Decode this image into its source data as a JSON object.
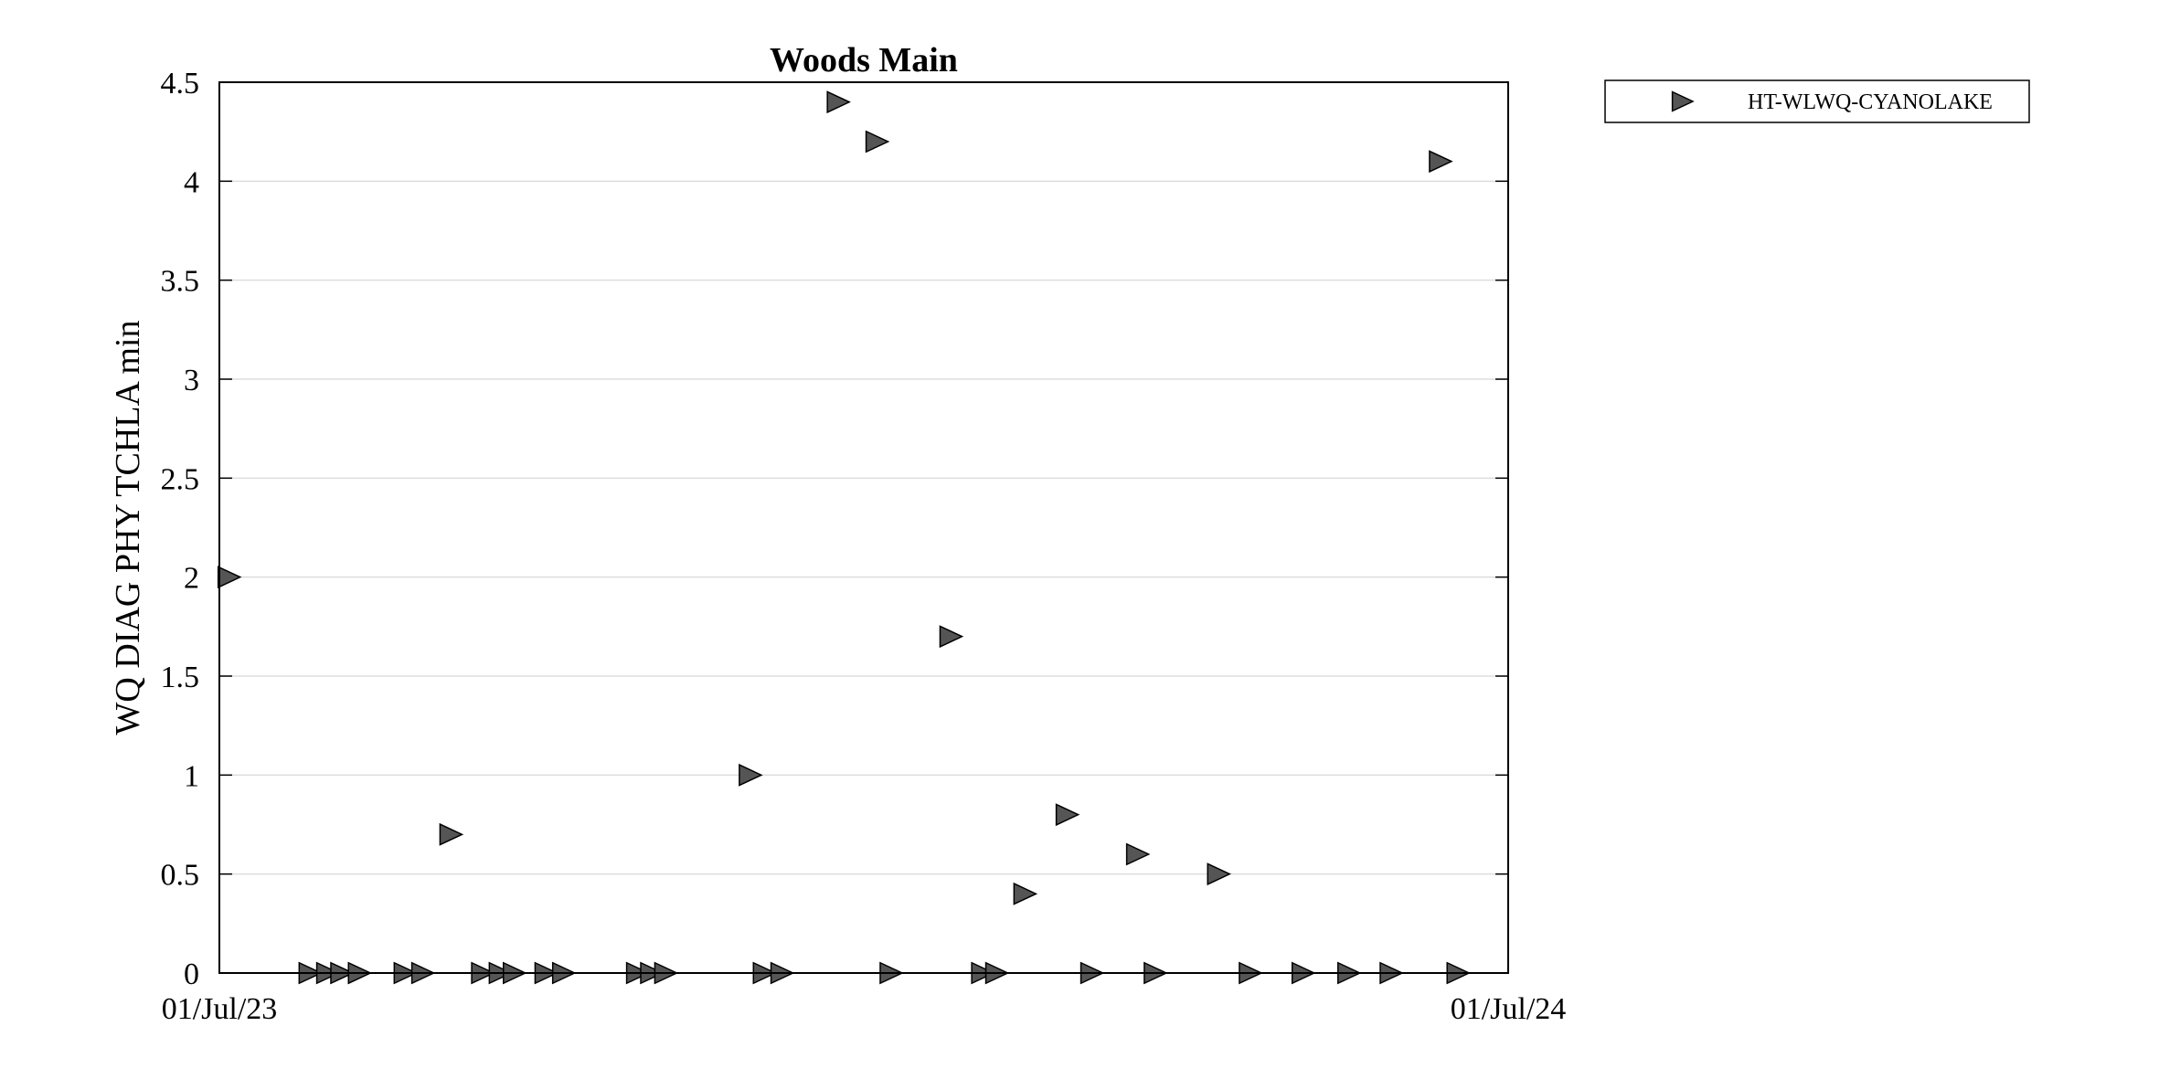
{
  "chart_data": {
    "type": "scatter",
    "title": "Woods Main",
    "xlabel": "",
    "ylabel": "WQ DIAG PHY TCHLA min",
    "x_tick_labels": [
      "01/Jul/23",
      "01/Jul/24"
    ],
    "xlim": [
      "2023-07-01",
      "2024-07-01"
    ],
    "ylim": [
      0,
      4.5
    ],
    "y_ticks": [
      0,
      0.5,
      1,
      1.5,
      2,
      2.5,
      3,
      3.5,
      4,
      4.5
    ],
    "y_tick_labels": [
      "0",
      "0.5",
      "1",
      "1.5",
      "2",
      "2.5",
      "3",
      "3.5",
      "4",
      "4.5"
    ],
    "grid": "horizontal",
    "legend_position": "outside-top-right",
    "colors": {
      "marker_fill": "#555555",
      "marker_edge": "#000000",
      "grid": "#dddddd"
    },
    "series": [
      {
        "name": "HT-WLWQ-CYANOLAKE",
        "marker": "triangle-right",
        "x": [
          "2023-07-03",
          "2023-07-26",
          "2023-07-31",
          "2023-08-04",
          "2023-08-09",
          "2023-08-22",
          "2023-08-27",
          "2023-09-04",
          "2023-09-13",
          "2023-09-18",
          "2023-09-22",
          "2023-10-01",
          "2023-10-06",
          "2023-10-27",
          "2023-10-31",
          "2023-11-04",
          "2023-11-28",
          "2023-12-02",
          "2023-12-07",
          "2023-12-23",
          "2024-01-03",
          "2024-01-07",
          "2024-01-24",
          "2024-02-02",
          "2024-02-06",
          "2024-02-14",
          "2024-02-26",
          "2024-03-04",
          "2024-03-17",
          "2024-03-22",
          "2024-04-09",
          "2024-04-18",
          "2024-05-03",
          "2024-05-16",
          "2024-05-28",
          "2024-06-11",
          "2024-06-16"
        ],
        "y": [
          2,
          0,
          0,
          0,
          0,
          0,
          0,
          0.7,
          0,
          0,
          0,
          0,
          0,
          0,
          0,
          0,
          1,
          0,
          0,
          4.4,
          4.2,
          0,
          1.7,
          0,
          0,
          0.4,
          0.8,
          0,
          0.6,
          0,
          0.5,
          0,
          0,
          0,
          0,
          4.1,
          0
        ]
      }
    ]
  }
}
